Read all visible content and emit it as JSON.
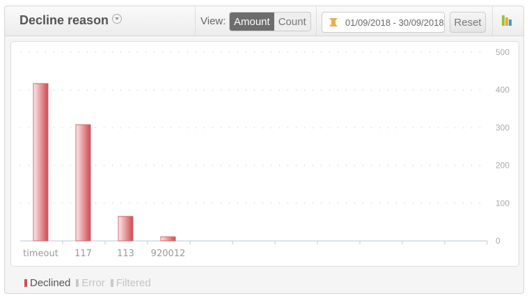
{
  "header": {
    "title": "Decline reason",
    "view_label": "View:",
    "view_options": [
      "Amount",
      "Count"
    ],
    "view_selected": "Amount",
    "date_range": "01/09/2018 - 30/09/2018",
    "reset_label": "Reset"
  },
  "legend": [
    {
      "label": "Declined",
      "color": "#d05050",
      "active": true
    },
    {
      "label": "Error",
      "color": "#c8c8c8",
      "active": false
    },
    {
      "label": "Filtered",
      "color": "#c8c8c8",
      "active": false
    }
  ],
  "chart_data": {
    "type": "bar",
    "categories": [
      "timeout",
      "117",
      "113",
      "920012"
    ],
    "series": [
      {
        "name": "Declined",
        "values": [
          417,
          308,
          65,
          11
        ]
      }
    ],
    "ylim": [
      0,
      500
    ],
    "yticks": [
      0,
      100,
      200,
      300,
      400,
      500
    ],
    "y_axis_side": "right",
    "grid": true,
    "legend_position": "bottom-left",
    "bar_color": "#d05050"
  }
}
